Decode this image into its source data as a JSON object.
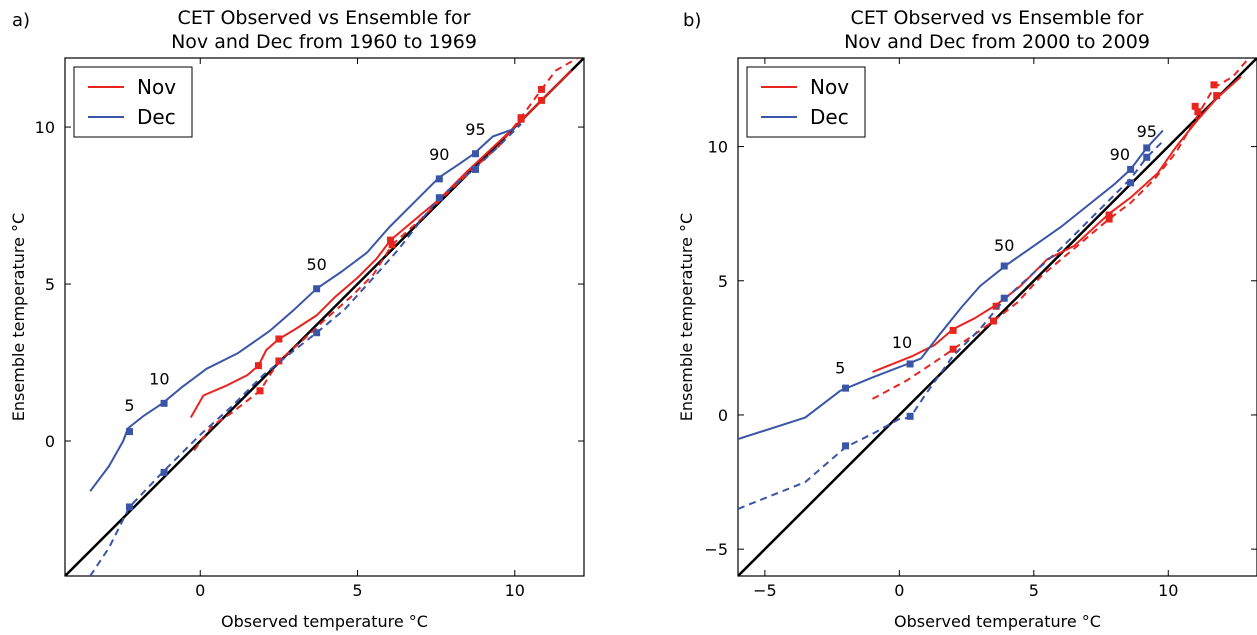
{
  "chart_data": [
    {
      "type": "line",
      "panel_letter": "a)",
      "title": "CET Observed vs Ensemble for",
      "subtitle": "Nov and Dec from 1960 to 1969",
      "xlabel": "Observed temperature °C",
      "ylabel": "Ensemble temperature °C",
      "xlim": [
        -4.3,
        12.2
      ],
      "ylim": [
        -4.3,
        12.2
      ],
      "xticks": [
        0,
        5,
        10
      ],
      "yticks": [
        0,
        5,
        10
      ],
      "grid": false,
      "legend_position": "top-left",
      "legend": [
        {
          "label": "Nov",
          "color": "#e8241f"
        },
        {
          "label": "Dec",
          "color": "#3a55a8"
        }
      ],
      "reference_line": {
        "color": "#000000",
        "from": [
          -4.3,
          -4.3
        ],
        "to": [
          12.2,
          12.2
        ]
      },
      "series": [
        {
          "name": "Nov",
          "style": "solid",
          "color": "#e8241f",
          "x": [
            -0.3,
            0.1,
            0.8,
            1.5,
            1.85,
            2.1,
            2.5,
            3.0,
            3.7,
            4.3,
            5.0,
            5.6,
            6.05,
            7.0,
            7.6,
            8.5,
            9.3,
            10.2,
            10.85,
            11.8
          ],
          "y": [
            0.75,
            1.45,
            1.75,
            2.1,
            2.4,
            2.9,
            3.25,
            3.55,
            4.0,
            4.6,
            5.2,
            5.8,
            6.4,
            7.2,
            7.7,
            8.6,
            9.35,
            10.2,
            10.85,
            11.8
          ],
          "markers": [
            [
              1.85,
              2.4
            ],
            [
              2.5,
              3.25
            ],
            [
              6.05,
              6.4
            ],
            [
              10.2,
              10.25
            ],
            [
              10.85,
              10.85
            ]
          ]
        },
        {
          "name": "Nov",
          "style": "dashed",
          "color": "#e8241f",
          "x": [
            -0.2,
            0.4,
            1.0,
            1.9,
            2.5,
            3.3,
            4.0,
            4.8,
            5.5,
            6.1,
            7.0,
            7.7,
            8.6,
            9.5,
            10.2,
            10.85,
            11.3,
            12.0
          ],
          "y": [
            -0.3,
            0.5,
            0.9,
            1.6,
            2.55,
            3.25,
            3.9,
            4.6,
            5.3,
            6.25,
            7.05,
            7.75,
            8.6,
            9.4,
            10.3,
            11.2,
            11.8,
            12.2
          ],
          "markers": [
            [
              1.9,
              1.6
            ],
            [
              2.5,
              2.55
            ],
            [
              6.1,
              6.25
            ],
            [
              10.2,
              10.3
            ],
            [
              10.85,
              11.2
            ]
          ]
        },
        {
          "name": "Dec",
          "style": "solid",
          "color": "#3a55a8",
          "x": [
            -3.5,
            -2.9,
            -2.45,
            -2.3,
            -1.8,
            -1.2,
            -0.6,
            0.2,
            1.2,
            2.2,
            3.0,
            3.7,
            4.5,
            5.3,
            6.0,
            6.8,
            7.6,
            8.2,
            8.7,
            9.3,
            10.0
          ],
          "y": [
            -1.6,
            -0.8,
            0.0,
            0.4,
            0.8,
            1.2,
            1.7,
            2.3,
            2.8,
            3.5,
            4.2,
            4.85,
            5.4,
            6.0,
            6.8,
            7.6,
            8.4,
            8.8,
            9.15,
            9.7,
            9.95
          ],
          "markers": [
            [
              -2.25,
              0.3
            ],
            [
              -1.15,
              1.2
            ],
            [
              3.7,
              4.85
            ],
            [
              7.6,
              8.35
            ],
            [
              8.75,
              9.15
            ]
          ]
        },
        {
          "name": "Dec",
          "style": "dashed",
          "color": "#3a55a8",
          "x": [
            -3.5,
            -2.9,
            -2.25,
            -1.2,
            0.0,
            1.0,
            2.0,
            3.0,
            3.7,
            4.6,
            5.5,
            6.3,
            7.0,
            7.6,
            8.7,
            9.5,
            10.2
          ],
          "y": [
            -4.3,
            -3.4,
            -2.1,
            -1.0,
            0.2,
            1.1,
            2.1,
            2.9,
            3.45,
            4.2,
            5.2,
            6.1,
            7.0,
            7.75,
            8.65,
            9.4,
            10.1
          ],
          "markers": [
            [
              -2.25,
              -2.1
            ],
            [
              -1.15,
              -1.0
            ],
            [
              3.7,
              3.45
            ],
            [
              7.6,
              7.75
            ],
            [
              8.75,
              8.65
            ]
          ]
        }
      ],
      "percentile_labels": [
        {
          "text": "5",
          "x": -2.25,
          "y": 0.95
        },
        {
          "text": "10",
          "x": -1.3,
          "y": 1.8
        },
        {
          "text": "50",
          "x": 3.7,
          "y": 5.45
        },
        {
          "text": "90",
          "x": 7.6,
          "y": 8.95
        },
        {
          "text": "95",
          "x": 8.75,
          "y": 9.75
        }
      ]
    },
    {
      "type": "line",
      "panel_letter": "b)",
      "title": "CET Observed vs Ensemble for",
      "subtitle": "Nov and Dec from 2000 to 2009",
      "xlabel": "Observed temperature °C",
      "ylabel": "Ensemble temperature °C",
      "xlim": [
        -6.0,
        13.3
      ],
      "ylim": [
        -6.0,
        13.3
      ],
      "xticks": [
        -5,
        0,
        5,
        10
      ],
      "yticks": [
        -5,
        0,
        5,
        10
      ],
      "grid": false,
      "legend_position": "top-left",
      "legend": [
        {
          "label": "Nov",
          "color": "#e8241f"
        },
        {
          "label": "Dec",
          "color": "#3a55a8"
        }
      ],
      "reference_line": {
        "color": "#000000",
        "from": [
          -6.0,
          -6.0
        ],
        "to": [
          13.3,
          13.3
        ]
      },
      "series": [
        {
          "name": "Nov",
          "style": "solid",
          "color": "#e8241f",
          "x": [
            -1.0,
            0.5,
            1.3,
            2.0,
            2.8,
            3.6,
            4.5,
            5.5,
            6.5,
            7.8,
            8.6,
            9.6,
            10.3,
            11.1,
            11.8,
            12.7
          ],
          "y": [
            1.6,
            2.2,
            2.6,
            3.2,
            3.6,
            4.1,
            4.8,
            5.8,
            6.3,
            7.5,
            8.1,
            9.0,
            10.0,
            11.0,
            11.8,
            12.6
          ],
          "markers": [
            [
              2.0,
              3.15
            ],
            [
              3.6,
              4.05
            ],
            [
              7.8,
              7.45
            ],
            [
              11.1,
              11.3
            ],
            [
              11.8,
              11.9
            ]
          ]
        },
        {
          "name": "Nov",
          "style": "dashed",
          "color": "#e8241f",
          "x": [
            -1.0,
            0.3,
            1.5,
            2.0,
            2.8,
            3.5,
            4.4,
            5.3,
            6.5,
            7.8,
            8.6,
            9.5,
            10.3,
            11.0,
            11.7,
            12.4,
            13.0
          ],
          "y": [
            0.6,
            1.3,
            2.1,
            2.45,
            3.0,
            3.5,
            4.2,
            5.2,
            6.2,
            7.3,
            7.9,
            8.8,
            9.8,
            11.0,
            12.2,
            12.6,
            13.3
          ],
          "markers": [
            [
              2.0,
              2.45
            ],
            [
              3.5,
              3.5
            ],
            [
              7.8,
              7.3
            ],
            [
              11.0,
              11.5
            ],
            [
              11.7,
              12.3
            ]
          ]
        },
        {
          "name": "Dec",
          "style": "solid",
          "color": "#3a55a8",
          "x": [
            -6.0,
            -3.5,
            -2.2,
            -1.0,
            0.3,
            0.8,
            1.5,
            2.3,
            3.0,
            4.0,
            5.0,
            6.0,
            7.0,
            8.0,
            8.6,
            9.2,
            9.8
          ],
          "y": [
            -0.9,
            -0.1,
            0.9,
            1.4,
            1.9,
            2.1,
            3.0,
            4.0,
            4.8,
            5.6,
            6.3,
            7.0,
            7.8,
            8.6,
            9.15,
            9.95,
            10.6
          ],
          "markers": [
            [
              -2.0,
              1.0
            ],
            [
              0.4,
              1.9
            ],
            [
              3.9,
              5.55
            ],
            [
              8.6,
              9.15
            ],
            [
              9.2,
              9.95
            ]
          ]
        },
        {
          "name": "Dec",
          "style": "dashed",
          "color": "#3a55a8",
          "x": [
            -6.0,
            -3.5,
            -2.0,
            -1.0,
            0.0,
            0.4,
            1.0,
            2.0,
            3.0,
            3.9,
            5.0,
            6.0,
            7.0,
            8.0,
            8.6,
            9.2,
            9.8
          ],
          "y": [
            -3.5,
            -2.5,
            -1.2,
            -0.7,
            -0.15,
            -0.1,
            0.8,
            2.2,
            3.2,
            4.3,
            5.3,
            6.2,
            7.2,
            8.2,
            8.8,
            9.6,
            10.2
          ],
          "markers": [
            [
              -2.0,
              -1.15
            ],
            [
              0.4,
              -0.05
            ],
            [
              3.9,
              4.35
            ],
            [
              8.6,
              8.65
            ],
            [
              9.2,
              9.6
            ]
          ]
        }
      ],
      "percentile_labels": [
        {
          "text": "5",
          "x": -2.2,
          "y": 1.55
        },
        {
          "text": "10",
          "x": 0.1,
          "y": 2.5
        },
        {
          "text": "50",
          "x": 3.9,
          "y": 6.1
        },
        {
          "text": "90",
          "x": 8.2,
          "y": 9.5
        },
        {
          "text": "95",
          "x": 9.2,
          "y": 10.35
        }
      ]
    }
  ]
}
